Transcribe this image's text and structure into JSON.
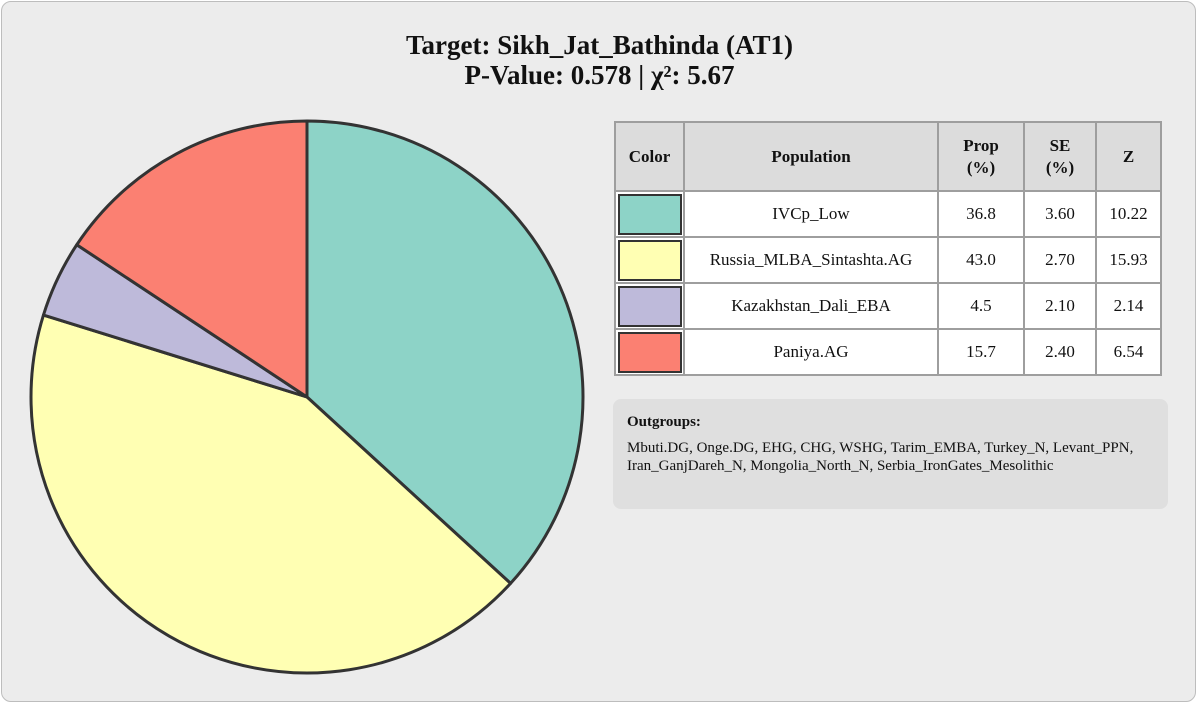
{
  "chart_data": {
    "type": "pie",
    "title": "Target: Sikh_Jat_Bathinda (AT1)",
    "subtitle": "P-Value: 0.578 | χ²: 5.67",
    "slices": [
      {
        "label": "IVCp_Low",
        "value": 36.8,
        "color": "#8dd3c7"
      },
      {
        "label": "Russia_MLBA_Sintashta.AG",
        "value": 43.0,
        "color": "#ffffb3"
      },
      {
        "label": "Kazakhstan_Dali_EBA",
        "value": 4.5,
        "color": "#bebada"
      },
      {
        "label": "Paniya.AG",
        "value": 15.7,
        "color": "#fb8072"
      }
    ]
  },
  "table": {
    "headers": [
      "Color",
      "Population",
      "Prop\n(%)",
      "SE\n(%)",
      "Z"
    ],
    "rows": [
      {
        "color": "#8dd3c7",
        "population": "IVCp_Low",
        "prop": "36.8",
        "se": "3.60",
        "z": "10.22"
      },
      {
        "color": "#ffffb3",
        "population": "Russia_MLBA_Sintashta.AG",
        "prop": "43.0",
        "se": "2.70",
        "z": "15.93"
      },
      {
        "color": "#bebada",
        "population": "Kazakhstan_Dali_EBA",
        "prop": "4.5",
        "se": "2.10",
        "z": "2.14"
      },
      {
        "color": "#fb8072",
        "population": "Paniya.AG",
        "prop": "15.7",
        "se": "2.40",
        "z": "6.54"
      }
    ]
  },
  "outgroups": {
    "heading": "Outgroups:",
    "text": "Mbuti.DG, Onge.DG, EHG, CHG, WSHG, Tarim_EMBA, Turkey_N, Levant_PPN, Iran_GanjDareh_N, Mongolia_North_N, Serbia_IronGates_Mesolithic"
  }
}
